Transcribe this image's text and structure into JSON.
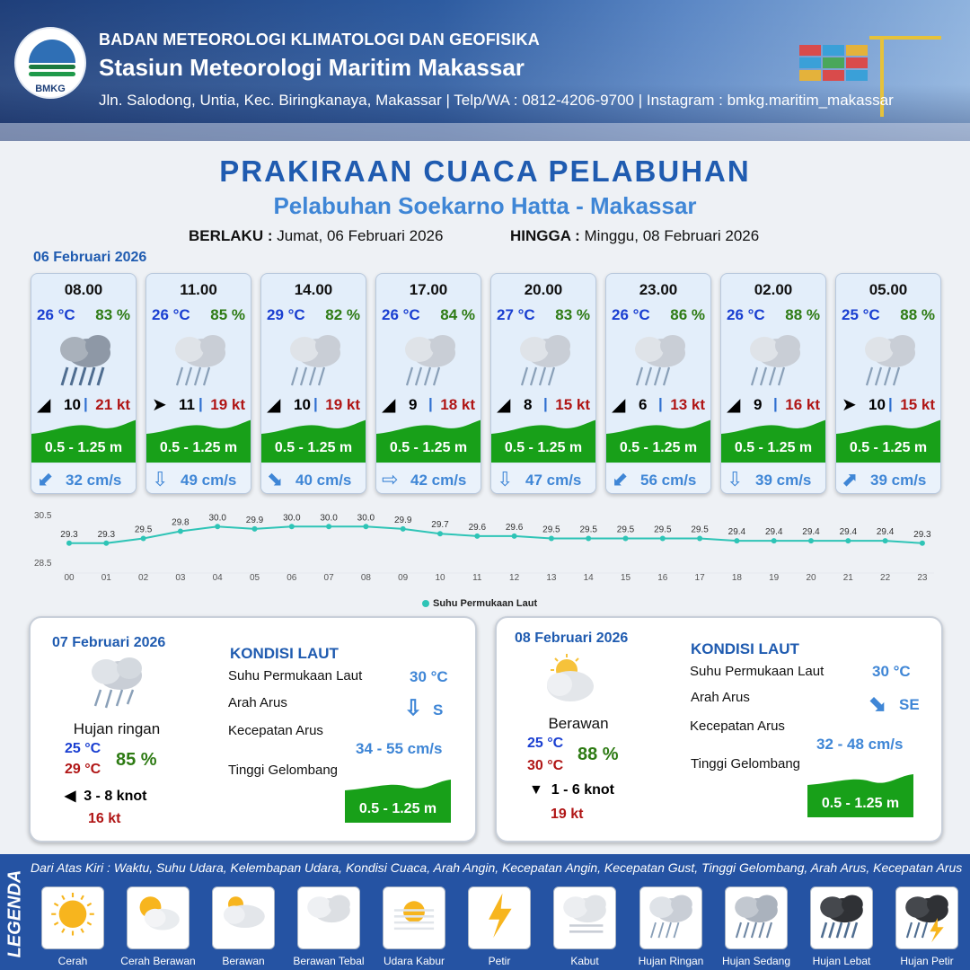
{
  "header": {
    "logo_text": "BMKG",
    "org": "BADAN METEOROLOGI KLIMATOLOGI DAN GEOFISIKA",
    "station": "Stasiun Meteorologi Maritim Makassar",
    "address": "Jln. Salodong, Untia, Kec. Biringkanaya, Makassar | Telp/WA : 0812-4206-9700 | Instagram : bmkg.maritim_makassar"
  },
  "title": "PRAKIRAAN CUACA PELABUHAN",
  "subtitle": "Pelabuhan Soekarno Hatta - Makassar",
  "validity": {
    "from_label": "BERLAKU :",
    "from_value": "Jumat, 06 Februari 2026",
    "to_label": "HINGGA :",
    "to_value": "Minggu, 08 Februari 2026"
  },
  "day1_date": "06 Februari 2026",
  "hourly": [
    {
      "time": "08.00",
      "temp": "26 °C",
      "hum": "83 %",
      "icon": "rain-heavy-icon",
      "wind_dir": "◢",
      "wind_dir_name": "arrow-northeast-icon",
      "wind": "10",
      "sep": "|",
      "gust": "21 kt",
      "wave": "0.5 - 1.25 m",
      "cur_dir": "⬋",
      "cur_dir_name": "arrow-southwest-icon",
      "cur": "32 cm/s"
    },
    {
      "time": "11.00",
      "temp": "26 °C",
      "hum": "85 %",
      "icon": "rain-light-icon",
      "wind_dir": "➤",
      "wind_dir_name": "arrow-east-icon",
      "wind": "11",
      "sep": "|",
      "gust": "19 kt",
      "wave": "0.5 - 1.25 m",
      "cur_dir": "⇩",
      "cur_dir_name": "arrow-south-icon",
      "cur": "49 cm/s"
    },
    {
      "time": "14.00",
      "temp": "29 °C",
      "hum": "82 %",
      "icon": "rain-light-icon",
      "wind_dir": "◢",
      "wind_dir_name": "arrow-northeast-icon",
      "wind": "10",
      "sep": "|",
      "gust": "19 kt",
      "wave": "0.5 - 1.25 m",
      "cur_dir": "⬊",
      "cur_dir_name": "arrow-southeast-icon",
      "cur": "40 cm/s"
    },
    {
      "time": "17.00",
      "temp": "26 °C",
      "hum": "84 %",
      "icon": "rain-light-icon",
      "wind_dir": "◢",
      "wind_dir_name": "arrow-northeast-icon",
      "wind": "9",
      "sep": "|",
      "gust": "18 kt",
      "wave": "0.5 - 1.25 m",
      "cur_dir": "⇨",
      "cur_dir_name": "arrow-east-icon",
      "cur": "42 cm/s"
    },
    {
      "time": "20.00",
      "temp": "27 °C",
      "hum": "83 %",
      "icon": "rain-light-icon",
      "wind_dir": "◢",
      "wind_dir_name": "arrow-northeast-icon",
      "wind": "8",
      "sep": "|",
      "gust": "15 kt",
      "wave": "0.5 - 1.25 m",
      "cur_dir": "⇩",
      "cur_dir_name": "arrow-south-icon",
      "cur": "47 cm/s"
    },
    {
      "time": "23.00",
      "temp": "26 °C",
      "hum": "86 %",
      "icon": "rain-light-icon",
      "wind_dir": "◢",
      "wind_dir_name": "arrow-northeast-icon",
      "wind": "6",
      "sep": "|",
      "gust": "13 kt",
      "wave": "0.5 - 1.25 m",
      "cur_dir": "⬋",
      "cur_dir_name": "arrow-southwest-icon",
      "cur": "56 cm/s"
    },
    {
      "time": "02.00",
      "temp": "26 °C",
      "hum": "88 %",
      "icon": "rain-light-icon",
      "wind_dir": "◢",
      "wind_dir_name": "arrow-northeast-icon",
      "wind": "9",
      "sep": "|",
      "gust": "16 kt",
      "wave": "0.5 - 1.25 m",
      "cur_dir": "⇩",
      "cur_dir_name": "arrow-south-icon",
      "cur": "39 cm/s"
    },
    {
      "time": "05.00",
      "temp": "25 °C",
      "hum": "88 %",
      "icon": "rain-light-icon",
      "wind_dir": "➤",
      "wind_dir_name": "arrow-east-icon",
      "wind": "10",
      "sep": "|",
      "gust": "15 kt",
      "wave": "0.5 - 1.25 m",
      "cur_dir": "⬈",
      "cur_dir_name": "arrow-northeast-icon",
      "cur": "39 cm/s"
    }
  ],
  "chart_data": {
    "type": "line",
    "categories": [
      "00",
      "01",
      "02",
      "03",
      "04",
      "05",
      "06",
      "07",
      "08",
      "09",
      "10",
      "11",
      "12",
      "13",
      "14",
      "15",
      "16",
      "17",
      "18",
      "19",
      "20",
      "21",
      "22",
      "23"
    ],
    "series": [
      {
        "name": "Suhu Permukaan Laut",
        "color": "#2ec4b6",
        "values": [
          29.3,
          29.3,
          29.5,
          29.8,
          30.0,
          29.9,
          30.0,
          30.0,
          30.0,
          29.9,
          29.7,
          29.6,
          29.6,
          29.5,
          29.5,
          29.5,
          29.5,
          29.5,
          29.4,
          29.4,
          29.4,
          29.4,
          29.4,
          29.3
        ],
        "labels": [
          "29.3",
          "29.3",
          "29.5",
          "29.8",
          "30.0",
          "29.9",
          "30.0",
          "30.0",
          "30.0",
          "29.9",
          "29.7",
          "29.6",
          "29.6",
          "29.5",
          "29.5",
          "29.5",
          "29.5",
          "29.5",
          "29.4",
          "29.4",
          "29.4",
          "29.4",
          "29.4",
          "29.3"
        ]
      }
    ],
    "ylim": [
      28.5,
      30.5
    ],
    "yticks": [
      "30.5",
      "28.5"
    ],
    "legend": "bottom-center"
  },
  "days": [
    {
      "date": "07 Februari 2026",
      "condition": "Hujan ringan",
      "icon": "rain-light-icon",
      "tmin": "25 °C",
      "tmax": "29 °C",
      "hum": "85 %",
      "wind_dir": "◀",
      "wind_dir_name": "arrow-west-icon",
      "wind": "3  - 8 knot",
      "gust": "16 kt",
      "kondisi_title": "KONDISI LAUT",
      "sst_label": "Suhu Permukaan Laut",
      "sst": "30 °C",
      "arah_label": "Arah Arus",
      "arah_icon": "⇩",
      "arah_icon_name": "arrow-south-icon",
      "arah": "S",
      "kec_label": "Kecepatan Arus",
      "kec": "34  - 55 cm/s",
      "tinggi_label": "Tinggi Gelombang",
      "tinggi": "0.5 - 1.25 m"
    },
    {
      "date": "08 Februari 2026",
      "condition": "Berawan",
      "icon": "cloudy-sun-icon",
      "tmin": "25 °C",
      "tmax": "30 °C",
      "hum": "88 %",
      "wind_dir": "▼",
      "wind_dir_name": "arrow-south-icon",
      "wind": "1  - 6 knot",
      "gust": "19 kt",
      "kondisi_title": "KONDISI LAUT",
      "sst_label": "Suhu Permukaan Laut",
      "sst": "30 °C",
      "arah_label": "Arah Arus",
      "arah_icon": "⬊",
      "arah_icon_name": "arrow-southeast-icon",
      "arah": "SE",
      "kec_label": "Kecepatan Arus",
      "kec": "32  - 48 cm/s",
      "tinggi_label": "Tinggi Gelombang",
      "tinggi": "0.5 - 1.25 m"
    }
  ],
  "legend": {
    "title": "LEGENDA",
    "info": "Dari Atas Kiri : Waktu, Suhu Udara, Kelembapan Udara, Kondisi Cuaca, Arah Angin, Kecepatan Angin, Kecepatan Gust, Tinggi Gelombang, Arah Arus, Kecepatan Arus",
    "items": [
      {
        "label": "Cerah",
        "icon": "sun-icon"
      },
      {
        "label": "Cerah Berawan",
        "icon": "sun-cloud-icon"
      },
      {
        "label": "Berawan",
        "icon": "cloudy-sun-icon"
      },
      {
        "label": "Berawan Tebal",
        "icon": "overcast-icon"
      },
      {
        "label": "Udara Kabur",
        "icon": "haze-icon"
      },
      {
        "label": "Petir",
        "icon": "lightning-icon"
      },
      {
        "label": "Kabut",
        "icon": "fog-icon"
      },
      {
        "label": "Hujan Ringan",
        "icon": "rain-light-icon"
      },
      {
        "label": "Hujan Sedang",
        "icon": "rain-moderate-icon"
      },
      {
        "label": "Hujan Lebat",
        "icon": "rain-heavy-icon"
      },
      {
        "label": "Hujan Petir",
        "icon": "thunderstorm-icon"
      }
    ]
  }
}
